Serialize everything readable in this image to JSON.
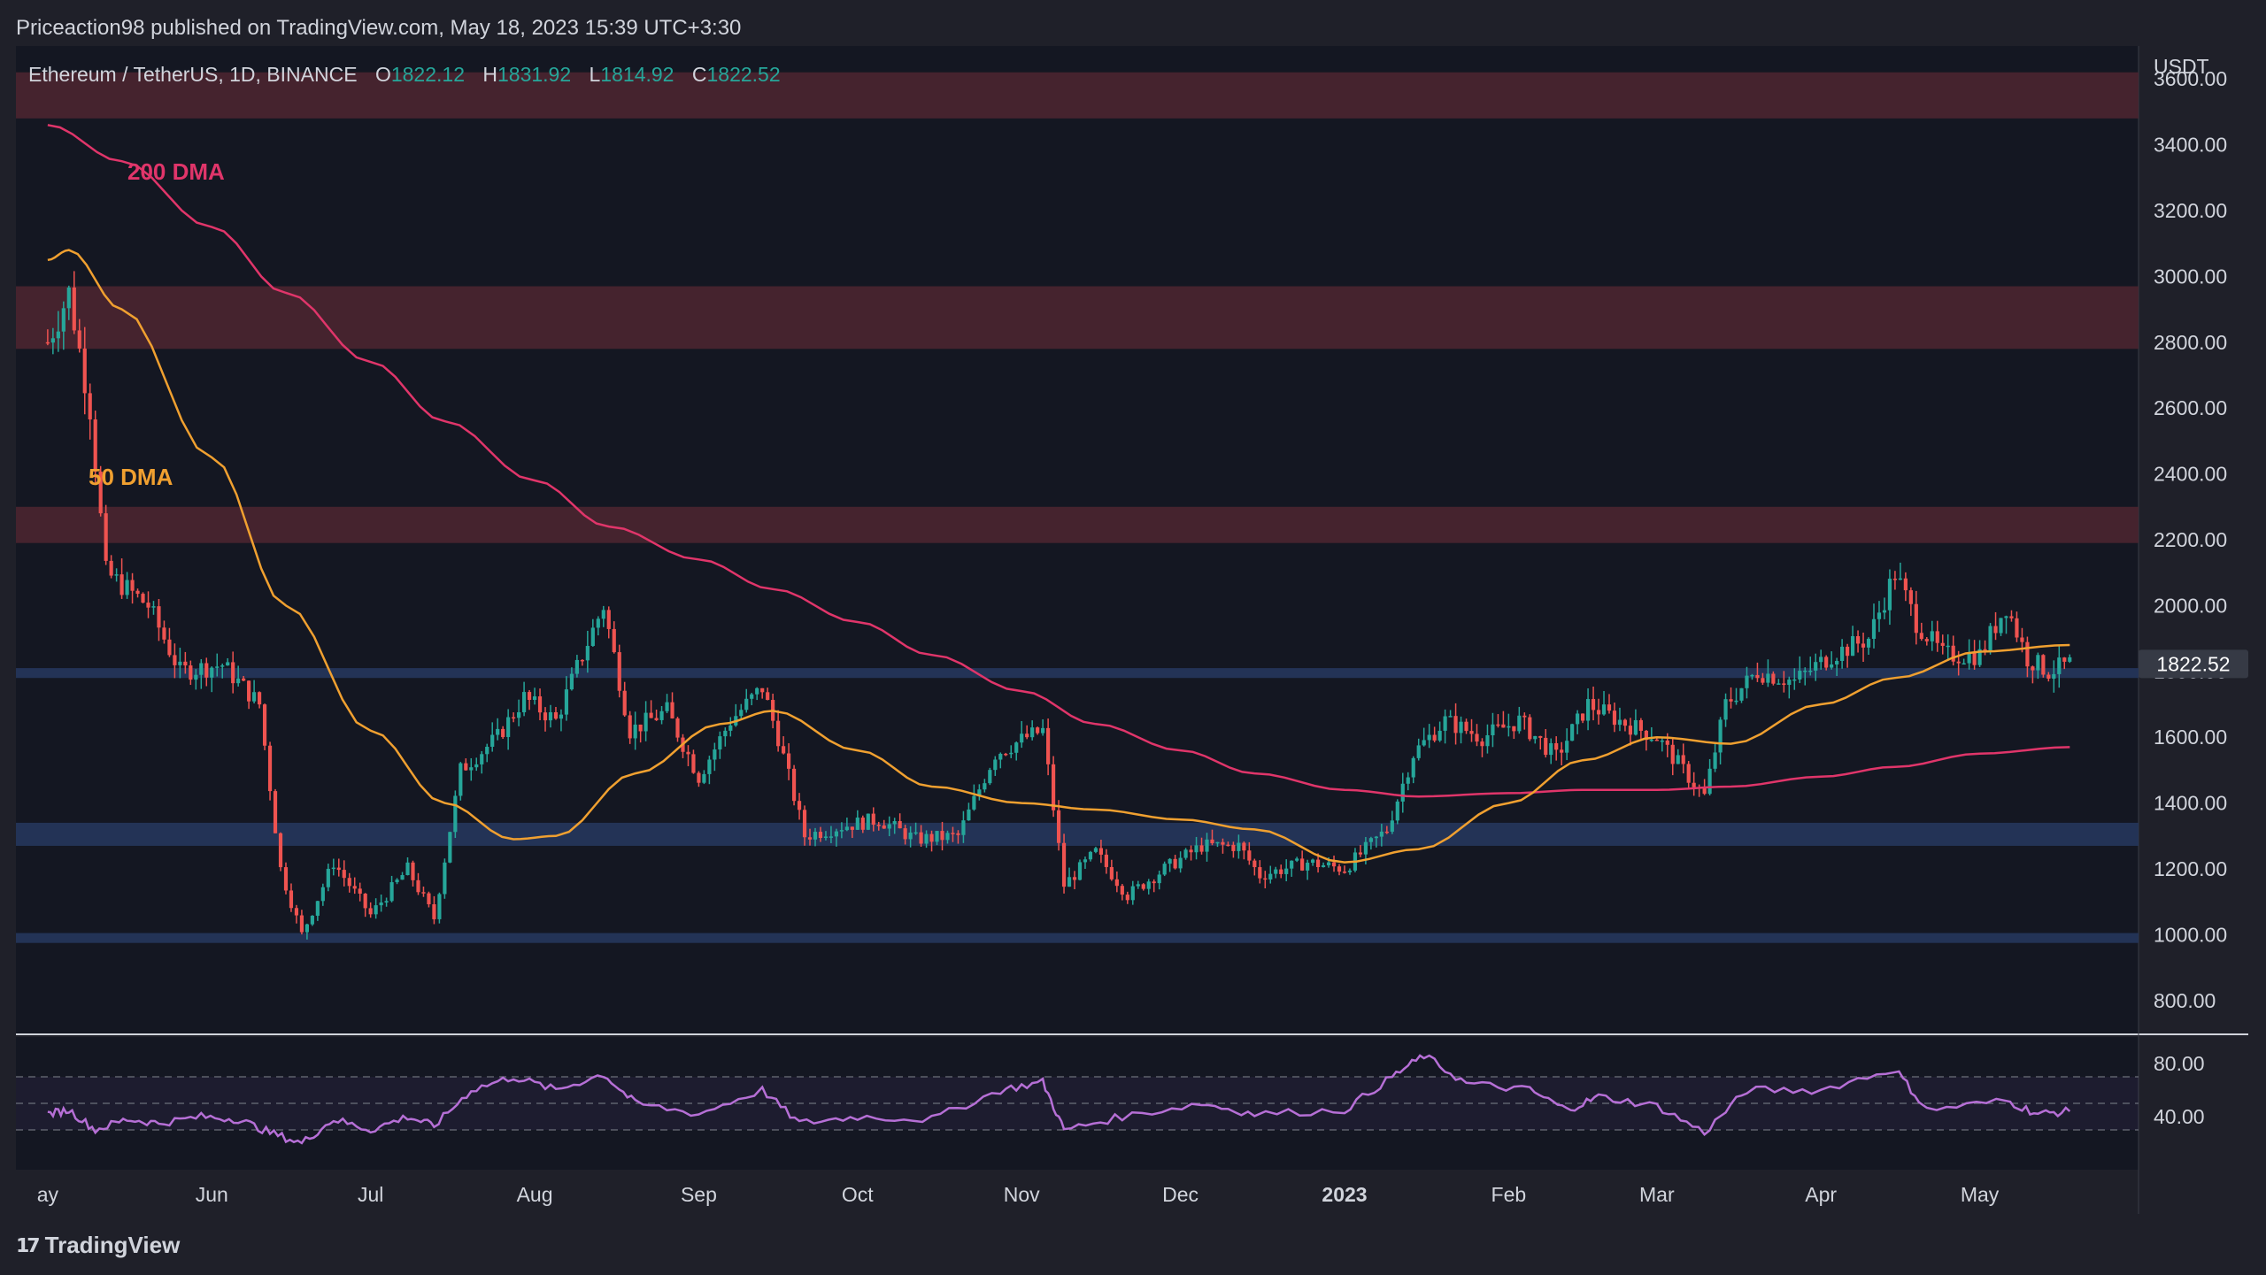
{
  "header": {
    "publisher": "Priceaction98 published on TradingView.com, May 18, 2023 15:39 UTC+3:30"
  },
  "legend": {
    "symbol": "Ethereum / TetherUS, 1D, BINANCE",
    "o_label": "O",
    "o_value": "1822.12",
    "h_label": "H",
    "h_value": "1831.92",
    "l_label": "L",
    "l_value": "1814.92",
    "c_label": "C",
    "c_value": "1822.52"
  },
  "annotations": {
    "dma200": "200 DMA",
    "dma50": "50 DMA"
  },
  "price_scale": {
    "unit": "USDT",
    "last_price": "1822.52"
  },
  "footer": {
    "brand": "TradingView"
  },
  "colors": {
    "background": "#141722",
    "up": "#26a69a",
    "down": "#ef5350",
    "dma50": "#f0a030",
    "dma200": "#e0356a",
    "rsi": "#b66fd6",
    "resistance_zone": "#4a2530",
    "support_zone": "#24355a"
  },
  "chart_data": {
    "type": "candlestick",
    "title": "Ethereum / TetherUS, 1D, BINANCE",
    "ylabel": "USDT",
    "ylim": [
      700,
      3700
    ],
    "y_ticks": [
      3600,
      3400,
      3200,
      3000,
      2800,
      2600,
      2400,
      2200,
      2000,
      1800,
      1600,
      1400,
      1200,
      1000,
      800
    ],
    "x_tick_labels": [
      "ay",
      "Jun",
      "Jul",
      "Aug",
      "Sep",
      "Oct",
      "Nov",
      "Dec",
      "2023",
      "Feb",
      "Mar",
      "Apr",
      "May"
    ],
    "resistance_zones": [
      [
        3480,
        3620
      ],
      [
        2780,
        2970
      ],
      [
        2190,
        2300
      ]
    ],
    "support_zones": [
      [
        1780,
        1810
      ],
      [
        1270,
        1340
      ],
      [
        975,
        1005
      ]
    ],
    "close_series": [
      {
        "date": "2022-05-01",
        "close": 2800
      },
      {
        "date": "2022-05-05",
        "close": 2950
      },
      {
        "date": "2022-05-09",
        "close": 2600
      },
      {
        "date": "2022-05-12",
        "close": 2100
      },
      {
        "date": "2022-05-16",
        "close": 2050
      },
      {
        "date": "2022-05-20",
        "close": 2000
      },
      {
        "date": "2022-05-26",
        "close": 1800
      },
      {
        "date": "2022-06-03",
        "close": 1820
      },
      {
        "date": "2022-06-10",
        "close": 1700
      },
      {
        "date": "2022-06-14",
        "close": 1200
      },
      {
        "date": "2022-06-18",
        "close": 1000
      },
      {
        "date": "2022-06-24",
        "close": 1220
      },
      {
        "date": "2022-07-01",
        "close": 1060
      },
      {
        "date": "2022-07-08",
        "close": 1200
      },
      {
        "date": "2022-07-13",
        "close": 1050
      },
      {
        "date": "2022-07-18",
        "close": 1500
      },
      {
        "date": "2022-07-25",
        "close": 1600
      },
      {
        "date": "2022-07-30",
        "close": 1720
      },
      {
        "date": "2022-08-05",
        "close": 1650
      },
      {
        "date": "2022-08-10",
        "close": 1850
      },
      {
        "date": "2022-08-14",
        "close": 2000
      },
      {
        "date": "2022-08-19",
        "close": 1620
      },
      {
        "date": "2022-08-26",
        "close": 1680
      },
      {
        "date": "2022-09-01",
        "close": 1480
      },
      {
        "date": "2022-09-07",
        "close": 1650
      },
      {
        "date": "2022-09-13",
        "close": 1750
      },
      {
        "date": "2022-09-16",
        "close": 1600
      },
      {
        "date": "2022-09-21",
        "close": 1300
      },
      {
        "date": "2022-09-28",
        "close": 1330
      },
      {
        "date": "2022-10-05",
        "close": 1350
      },
      {
        "date": "2022-10-12",
        "close": 1290
      },
      {
        "date": "2022-10-20",
        "close": 1300
      },
      {
        "date": "2022-10-27",
        "close": 1550
      },
      {
        "date": "2022-11-02",
        "close": 1600
      },
      {
        "date": "2022-11-05",
        "close": 1620
      },
      {
        "date": "2022-11-09",
        "close": 1150
      },
      {
        "date": "2022-11-15",
        "close": 1250
      },
      {
        "date": "2022-11-21",
        "close": 1120
      },
      {
        "date": "2022-11-28",
        "close": 1200
      },
      {
        "date": "2022-12-05",
        "close": 1270
      },
      {
        "date": "2022-12-12",
        "close": 1270
      },
      {
        "date": "2022-12-16",
        "close": 1180
      },
      {
        "date": "2022-12-25",
        "close": 1220
      },
      {
        "date": "2023-01-01",
        "close": 1200
      },
      {
        "date": "2023-01-09",
        "close": 1320
      },
      {
        "date": "2023-01-14",
        "close": 1550
      },
      {
        "date": "2023-01-20",
        "close": 1650
      },
      {
        "date": "2023-01-27",
        "close": 1600
      },
      {
        "date": "2023-02-03",
        "close": 1650
      },
      {
        "date": "2023-02-10",
        "close": 1540
      },
      {
        "date": "2023-02-16",
        "close": 1700
      },
      {
        "date": "2023-02-22",
        "close": 1650
      },
      {
        "date": "2023-03-01",
        "close": 1600
      },
      {
        "date": "2023-03-10",
        "close": 1420
      },
      {
        "date": "2023-03-14",
        "close": 1700
      },
      {
        "date": "2023-03-20",
        "close": 1800
      },
      {
        "date": "2023-03-27",
        "close": 1770
      },
      {
        "date": "2023-04-03",
        "close": 1850
      },
      {
        "date": "2023-04-10",
        "close": 1900
      },
      {
        "date": "2023-04-15",
        "close": 2100
      },
      {
        "date": "2023-04-19",
        "close": 1950
      },
      {
        "date": "2023-04-24",
        "close": 1850
      },
      {
        "date": "2023-05-01",
        "close": 1850
      },
      {
        "date": "2023-05-06",
        "close": 2000
      },
      {
        "date": "2023-05-10",
        "close": 1840
      },
      {
        "date": "2023-05-14",
        "close": 1800
      },
      {
        "date": "2023-05-18",
        "close": 1822.52
      }
    ],
    "dma50": [
      {
        "date": "2022-05-01",
        "value": 3050
      },
      {
        "date": "2022-05-05",
        "value": 3080
      },
      {
        "date": "2022-05-15",
        "value": 2900
      },
      {
        "date": "2022-06-01",
        "value": 2450
      },
      {
        "date": "2022-06-15",
        "value": 2000
      },
      {
        "date": "2022-07-01",
        "value": 1620
      },
      {
        "date": "2022-07-15",
        "value": 1400
      },
      {
        "date": "2022-07-28",
        "value": 1290
      },
      {
        "date": "2022-08-05",
        "value": 1300
      },
      {
        "date": "2022-08-20",
        "value": 1490
      },
      {
        "date": "2022-09-05",
        "value": 1640
      },
      {
        "date": "2022-09-15",
        "value": 1680
      },
      {
        "date": "2022-10-01",
        "value": 1560
      },
      {
        "date": "2022-10-15",
        "value": 1450
      },
      {
        "date": "2022-11-01",
        "value": 1400
      },
      {
        "date": "2022-11-15",
        "value": 1380
      },
      {
        "date": "2022-12-01",
        "value": 1350
      },
      {
        "date": "2022-12-15",
        "value": 1320
      },
      {
        "date": "2023-01-01",
        "value": 1220
      },
      {
        "date": "2023-01-15",
        "value": 1260
      },
      {
        "date": "2023-02-01",
        "value": 1400
      },
      {
        "date": "2023-02-15",
        "value": 1530
      },
      {
        "date": "2023-03-01",
        "value": 1600
      },
      {
        "date": "2023-03-15",
        "value": 1580
      },
      {
        "date": "2023-04-01",
        "value": 1700
      },
      {
        "date": "2023-04-15",
        "value": 1780
      },
      {
        "date": "2023-05-01",
        "value": 1860
      },
      {
        "date": "2023-05-18",
        "value": 1880
      }
    ],
    "dma200": [
      {
        "date": "2022-05-01",
        "value": 3460
      },
      {
        "date": "2022-05-15",
        "value": 3350
      },
      {
        "date": "2022-06-01",
        "value": 3150
      },
      {
        "date": "2022-06-15",
        "value": 2950
      },
      {
        "date": "2022-07-01",
        "value": 2740
      },
      {
        "date": "2022-07-15",
        "value": 2560
      },
      {
        "date": "2022-08-01",
        "value": 2380
      },
      {
        "date": "2022-08-15",
        "value": 2240
      },
      {
        "date": "2022-09-01",
        "value": 2140
      },
      {
        "date": "2022-09-15",
        "value": 2050
      },
      {
        "date": "2022-10-01",
        "value": 1950
      },
      {
        "date": "2022-10-15",
        "value": 1850
      },
      {
        "date": "2022-11-01",
        "value": 1740
      },
      {
        "date": "2022-11-15",
        "value": 1640
      },
      {
        "date": "2022-12-01",
        "value": 1560
      },
      {
        "date": "2022-12-15",
        "value": 1490
      },
      {
        "date": "2023-01-01",
        "value": 1440
      },
      {
        "date": "2023-01-15",
        "value": 1420
      },
      {
        "date": "2023-02-01",
        "value": 1430
      },
      {
        "date": "2023-02-15",
        "value": 1440
      },
      {
        "date": "2023-03-01",
        "value": 1440
      },
      {
        "date": "2023-03-15",
        "value": 1450
      },
      {
        "date": "2023-04-01",
        "value": 1480
      },
      {
        "date": "2023-04-15",
        "value": 1510
      },
      {
        "date": "2023-05-01",
        "value": 1550
      },
      {
        "date": "2023-05-18",
        "value": 1570
      }
    ],
    "rsi": {
      "ylim": [
        0,
        100
      ],
      "y_ticks": [
        80,
        40
      ],
      "levels": [
        70,
        30
      ],
      "values": [
        {
          "date": "2022-05-01",
          "value": 42
        },
        {
          "date": "2022-05-05",
          "value": 45
        },
        {
          "date": "2022-05-10",
          "value": 30
        },
        {
          "date": "2022-05-16",
          "value": 38
        },
        {
          "date": "2022-05-22",
          "value": 35
        },
        {
          "date": "2022-05-30",
          "value": 40
        },
        {
          "date": "2022-06-06",
          "value": 38
        },
        {
          "date": "2022-06-12",
          "value": 28
        },
        {
          "date": "2022-06-18",
          "value": 20
        },
        {
          "date": "2022-06-24",
          "value": 38
        },
        {
          "date": "2022-07-01",
          "value": 30
        },
        {
          "date": "2022-07-08",
          "value": 40
        },
        {
          "date": "2022-07-13",
          "value": 33
        },
        {
          "date": "2022-07-20",
          "value": 60
        },
        {
          "date": "2022-07-28",
          "value": 70
        },
        {
          "date": "2022-08-05",
          "value": 60
        },
        {
          "date": "2022-08-14",
          "value": 72
        },
        {
          "date": "2022-08-20",
          "value": 50
        },
        {
          "date": "2022-09-01",
          "value": 42
        },
        {
          "date": "2022-09-13",
          "value": 60
        },
        {
          "date": "2022-09-20",
          "value": 35
        },
        {
          "date": "2022-10-01",
          "value": 40
        },
        {
          "date": "2022-10-15",
          "value": 38
        },
        {
          "date": "2022-10-28",
          "value": 60
        },
        {
          "date": "2022-11-05",
          "value": 66
        },
        {
          "date": "2022-11-09",
          "value": 30
        },
        {
          "date": "2022-11-20",
          "value": 40
        },
        {
          "date": "2022-12-05",
          "value": 50
        },
        {
          "date": "2022-12-15",
          "value": 42
        },
        {
          "date": "2023-01-01",
          "value": 45
        },
        {
          "date": "2023-01-10",
          "value": 70
        },
        {
          "date": "2023-01-16",
          "value": 86
        },
        {
          "date": "2023-01-24",
          "value": 65
        },
        {
          "date": "2023-02-05",
          "value": 60
        },
        {
          "date": "2023-02-12",
          "value": 45
        },
        {
          "date": "2023-02-18",
          "value": 55
        },
        {
          "date": "2023-03-01",
          "value": 48
        },
        {
          "date": "2023-03-10",
          "value": 28
        },
        {
          "date": "2023-03-18",
          "value": 60
        },
        {
          "date": "2023-04-01",
          "value": 60
        },
        {
          "date": "2023-04-15",
          "value": 76
        },
        {
          "date": "2023-04-21",
          "value": 45
        },
        {
          "date": "2023-05-06",
          "value": 52
        },
        {
          "date": "2023-05-12",
          "value": 42
        },
        {
          "date": "2023-05-18",
          "value": 44
        }
      ]
    }
  }
}
